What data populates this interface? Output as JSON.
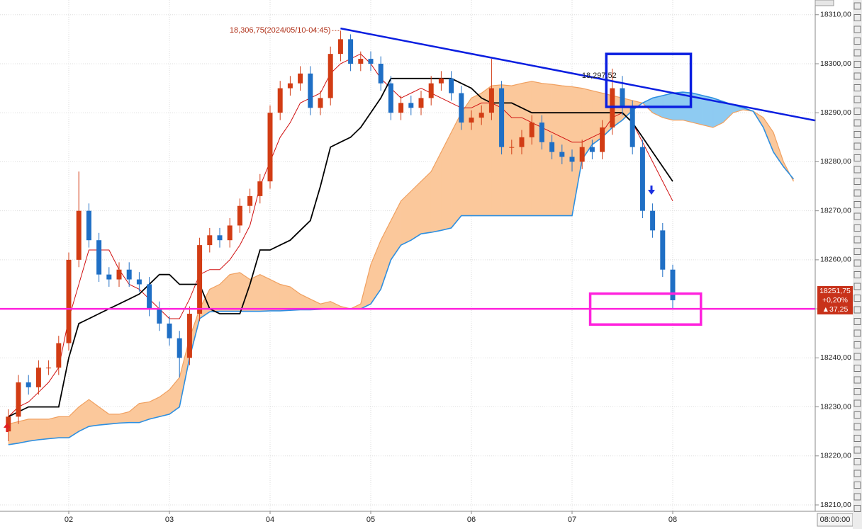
{
  "chart_data": {
    "type": "candlestick",
    "categories": [
      null,
      null,
      null,
      null,
      null,
      null,
      "02",
      null,
      null,
      null,
      null,
      null,
      null,
      null,
      null,
      null,
      "03",
      null,
      null,
      null,
      null,
      null,
      null,
      null,
      null,
      null,
      "04",
      null,
      null,
      null,
      null,
      null,
      null,
      null,
      null,
      null,
      "05",
      null,
      null,
      null,
      null,
      null,
      null,
      null,
      null,
      null,
      "06",
      null,
      null,
      null,
      null,
      null,
      null,
      null,
      null,
      null,
      "07",
      null,
      null,
      null,
      null,
      null,
      null,
      null,
      null,
      null,
      "08",
      null,
      null,
      null,
      null,
      null,
      null,
      null,
      null,
      null,
      null,
      null,
      null
    ],
    "open": [
      18225,
      18228,
      18235,
      18234,
      18238,
      18238,
      18243,
      18260,
      18270,
      18264,
      18257,
      18256,
      18258,
      18256,
      18255,
      18250,
      18247,
      18244,
      18240,
      18249,
      18263,
      18265,
      18264,
      18267,
      18271,
      18273,
      18276,
      18290,
      18295,
      18296,
      18298,
      18291,
      18293,
      18302,
      18305,
      18300,
      18301,
      18300,
      18296,
      18290,
      18292,
      18291,
      18293,
      18296,
      18297,
      18294,
      18288,
      18289,
      18290,
      18295,
      18283,
      18283,
      18285,
      18288,
      18284,
      18282,
      18281,
      18280,
      18283,
      18282,
      18287,
      18295,
      18291,
      18283,
      18270,
      18266,
      18258,
      null,
      null,
      null,
      null,
      null,
      null,
      null,
      null,
      null,
      null,
      null,
      null
    ],
    "high": [
      18229.5,
      18236.5,
      18236.5,
      18239.5,
      18239.5,
      18244.5,
      18261.5,
      18278,
      18271.5,
      18265.5,
      18258.5,
      18259.5,
      18259.5,
      18257.5,
      18256.5,
      18251.5,
      18248.5,
      18245.5,
      18250.5,
      18264.5,
      18266.5,
      18266.5,
      18268.5,
      18272.5,
      18274.5,
      18277.5,
      18291.5,
      18296.5,
      18297.5,
      18299.5,
      18299.5,
      18294.5,
      18303.5,
      18306.75,
      18306,
      18302.5,
      18302.5,
      18301.5,
      18297.5,
      18293.5,
      18293.5,
      18294.5,
      18297.5,
      18298.5,
      18298.5,
      18295.5,
      18290.5,
      18291.5,
      18301,
      18296.5,
      18284.5,
      18286.5,
      18289.5,
      18289.5,
      18285.5,
      18283.5,
      18282.5,
      18284.5,
      18284.5,
      18288.5,
      18299,
      18297.5,
      18292.5,
      18284.5,
      18271.5,
      18267.5,
      18259,
      null,
      null,
      null,
      null,
      null,
      null,
      null,
      null,
      null,
      null,
      null,
      null
    ],
    "low": [
      18223,
      18226.5,
      18232.5,
      18232.5,
      18236.5,
      18236.5,
      18241.5,
      18258.5,
      18262.5,
      18255.5,
      18254.5,
      18254.5,
      18254.5,
      18253.5,
      18248.5,
      18245.5,
      18242.5,
      18236,
      18238.5,
      18247.5,
      18261.5,
      18262.5,
      18262.5,
      18265.5,
      18269.5,
      18271.5,
      18274.5,
      18288.5,
      18293.5,
      18294.5,
      18289.5,
      18289.5,
      18291.5,
      18300.5,
      18298.5,
      18298.5,
      18298.5,
      18294.5,
      18288.5,
      18288.5,
      18289.5,
      18289.5,
      18291.5,
      18294.5,
      18292.5,
      18286.5,
      18286.5,
      18287.5,
      18288.5,
      18281.5,
      18281.5,
      18281.5,
      18283.5,
      18282.5,
      18280.5,
      18279.5,
      18278,
      18278.5,
      18280.5,
      18280.5,
      18285.5,
      18289.5,
      18281.5,
      18268.5,
      18264.5,
      18256.5,
      18250,
      null,
      null,
      null,
      null,
      null,
      null,
      null,
      null,
      null,
      null,
      null,
      null
    ],
    "close": [
      18228,
      18235,
      18234,
      18238,
      18238,
      18243,
      18260,
      18270,
      18264,
      18257,
      18256,
      18258,
      18256,
      18255,
      18250,
      18247,
      18244,
      18240,
      18249,
      18263,
      18265,
      18264,
      18267,
      18271,
      18273,
      18276,
      18290,
      18295,
      18296,
      18298,
      18291,
      18293,
      18302,
      18305,
      18300,
      18301,
      18300,
      18296,
      18290,
      18292,
      18291,
      18293,
      18296,
      18297,
      18294,
      18288,
      18289,
      18290,
      18295,
      18283,
      18283,
      18285,
      18288,
      18284,
      18282,
      18281,
      18280,
      18283,
      18282,
      18287,
      18295,
      18291,
      18283,
      18270,
      18266,
      18258,
      18251.75,
      null,
      null,
      null,
      null,
      null,
      null,
      null,
      null,
      null,
      null,
      null,
      null
    ],
    "up_color": "#d23c14",
    "down_color": "#1f6fc5",
    "series": [
      {
        "name": "span_a",
        "color": "#f0a060",
        "values": [
          18226.5,
          18227,
          18227.5,
          18227.5,
          18227.5,
          18228,
          18228,
          18230,
          18231.5,
          18230,
          18228.5,
          18228.5,
          18229,
          18230.7,
          18231,
          18232,
          18233.5,
          18236,
          18244,
          18250,
          18254,
          18255,
          18257,
          18257.4,
          18256,
          18257,
          18256,
          18255,
          18254.5,
          18253,
          18252,
          18251,
          18251.5,
          18250.5,
          18250,
          18251,
          18259,
          18264,
          18268,
          18272,
          18274,
          18276,
          18278,
          18282,
          18286,
          18290,
          18293,
          18294,
          18295.5,
          18295.7,
          18295.5,
          18296,
          18296.4,
          18296,
          18295.8,
          18295.5,
          18295.3,
          18295,
          18294.5,
          18294,
          18293.5,
          18293,
          18292.5,
          18292,
          18290,
          18289,
          18288.5,
          18288.5,
          18288,
          18287.5,
          18287,
          18288,
          18290,
          18290.6,
          18290.3,
          18289,
          18286,
          18280,
          18276
        ]
      },
      {
        "name": "span_b",
        "color": "#2d8fe0",
        "values": [
          18222.3,
          18222.6,
          18223,
          18223.3,
          18223.5,
          18223.7,
          18223.7,
          18225,
          18226,
          18226.3,
          18226.5,
          18226.7,
          18226.8,
          18226.8,
          18227.5,
          18228,
          18228.5,
          18230,
          18240,
          18248,
          18249.4,
          18249.5,
          18249.5,
          18249.5,
          18249.5,
          18249.5,
          18249.6,
          18249.6,
          18249.7,
          18249.8,
          18249.8,
          18249.9,
          18250,
          18250,
          18250,
          18250,
          18251,
          18254,
          18260,
          18263,
          18264,
          18265.3,
          18265.6,
          18266,
          18266.5,
          18269,
          18269,
          18269,
          18269,
          18269,
          18269,
          18269,
          18269,
          18269,
          18269,
          18269,
          18269,
          18280.5,
          18283.5,
          18285,
          18287,
          18288.5,
          18290.5,
          18292,
          18293,
          18293.5,
          18294,
          18294.2,
          18294,
          18293.5,
          18293,
          18292.3,
          18291.6,
          18291,
          18290.3,
          18287,
          18282,
          18279,
          18276.5
        ]
      },
      {
        "name": "tenkan",
        "color": "#d01010",
        "values": [
          18228,
          18230,
          18231,
          18233,
          18235,
          18238,
          18248,
          18255,
          18262,
          18262,
          18262,
          18258,
          18255,
          18254,
          18252,
          18250,
          18248,
          18248,
          18252,
          18257,
          18258,
          18258,
          18260,
          18263,
          18267,
          18275,
          18280,
          18285,
          18288,
          18292,
          18293,
          18294,
          18298,
          18300,
          18301,
          18302,
          18300,
          18297,
          18295,
          18293,
          18294,
          18295,
          18294,
          18293,
          18292,
          18291,
          18291,
          18292,
          18292,
          18291,
          18289,
          18289,
          18288,
          18287,
          18286,
          18285,
          18284,
          18284,
          18285,
          18286,
          18289,
          18290,
          18288,
          18284,
          18280,
          18276,
          18272,
          null,
          null,
          null,
          null,
          null,
          null,
          null,
          null,
          null,
          null,
          null,
          null
        ]
      },
      {
        "name": "kijun",
        "color": "#000000",
        "values": [
          18228,
          18229,
          18230,
          18230,
          18230,
          18230,
          18240,
          18247,
          18248,
          18249,
          18250,
          18251,
          18252,
          18253,
          18255,
          18257,
          18257,
          18255,
          18255,
          18255,
          18250,
          18249,
          18249,
          18249,
          18255,
          18262,
          18262,
          18263,
          18264,
          18266,
          18268,
          18275,
          18283,
          18284,
          18285,
          18287,
          18290,
          18293,
          18297,
          18297,
          18297,
          18297,
          18297,
          18297,
          18297,
          18296,
          18295,
          18293,
          18292,
          18292,
          18292,
          18291,
          18290,
          18290,
          18290,
          18290,
          18290,
          18290,
          18290,
          18290,
          18290,
          18290,
          18288,
          18285,
          18282,
          18279,
          18276,
          null,
          null,
          null,
          null,
          null,
          null,
          null,
          null,
          null,
          null,
          null,
          null
        ]
      }
    ],
    "cloud_up_color": "#fbc89b",
    "cloud_down_color": "#8ecbf2",
    "ylim": [
      18208.7,
      18313
    ],
    "yticks": [
      {
        "value": 18210,
        "label": "18210,00"
      },
      {
        "value": 18220,
        "label": "18220,00"
      },
      {
        "value": 18230,
        "label": "18230,00"
      },
      {
        "value": 18240,
        "label": "18240,00"
      },
      {
        "value": 18250,
        "label": "18250,00"
      },
      {
        "value": 18260,
        "label": "18260,00"
      },
      {
        "value": 18270,
        "label": "18270,00"
      },
      {
        "value": 18280,
        "label": "18280,00"
      },
      {
        "value": 18290,
        "label": "18290,00"
      },
      {
        "value": 18300,
        "label": "18300,00"
      },
      {
        "value": 18310,
        "label": "18310,00"
      }
    ],
    "grid": true,
    "time_label": "08:00:00",
    "trendline": {
      "color": "#0a1ee0",
      "x": [
        33,
        80.2
      ],
      "values": [
        18307.2,
        18288.4
      ]
    },
    "hline": {
      "color": "#ff22dd",
      "value": 18250
    },
    "boxes": [
      {
        "color": "#0a1ee0",
        "x": [
          59.4,
          67.8
        ],
        "values": [
          18302,
          18291.2
        ]
      },
      {
        "color": "#ff22dd",
        "x": [
          57.8,
          68.8
        ],
        "values": [
          18253.1,
          18246.8
        ]
      }
    ],
    "annotations": [
      {
        "text": "18,306,75(2024/05/10-04:45)",
        "x": 33,
        "value": 18306.75
      },
      {
        "text": "18,297,52",
        "x": 60,
        "value": 18297.52
      }
    ],
    "price_tag": {
      "price": "18251,75",
      "change_pct": "+0,20%",
      "change": "▲37,25",
      "value": 18251.75
    }
  }
}
